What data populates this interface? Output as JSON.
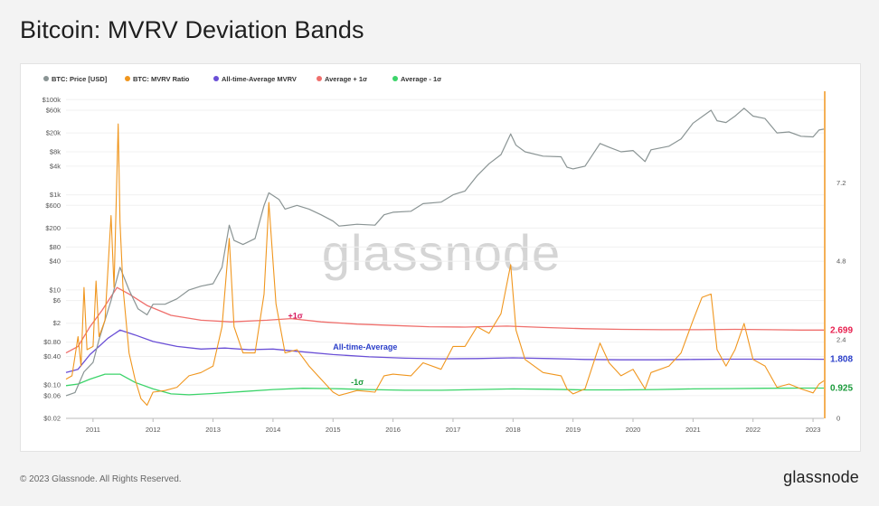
{
  "page": {
    "title": "Bitcoin: MVRV Deviation Bands",
    "footer_copyright": "© 2023 Glassnode. All Rights Reserved.",
    "footer_brand": "glassnode",
    "watermark": "glassnode"
  },
  "colors": {
    "price": "#8a9494",
    "mvrv": "#f0961e",
    "average": "#6a4fd6",
    "plus1": "#ef6f6c",
    "minus1": "#3cd46a",
    "ann_plus1": "#d81b60",
    "ann_avg": "#2b3fc9",
    "ann_minus1": "#1a9a3a"
  },
  "chart_data": {
    "type": "line",
    "title": "Bitcoin: MVRV Deviation Bands",
    "legend_position": "top-left",
    "legend": [
      {
        "label": "BTC: Price [USD]",
        "color": "#8a9494"
      },
      {
        "label": "BTC: MVRV Ratio",
        "color": "#f0961e"
      },
      {
        "label": "All-time-Average MVRV",
        "color": "#6a4fd6"
      },
      {
        "label": "Average + 1σ",
        "color": "#ef6f6c"
      },
      {
        "label": "Average - 1σ",
        "color": "#3cd46a"
      }
    ],
    "x_ticks": [
      "2011",
      "2012",
      "2013",
      "2014",
      "2015",
      "2016",
      "2017",
      "2018",
      "2019",
      "2020",
      "2021",
      "2022",
      "2023"
    ],
    "x_range": [
      2010.55,
      2023.18
    ],
    "left_axis": {
      "scale": "log",
      "range": [
        0.02,
        150000
      ],
      "ticks": [
        {
          "v": 100000,
          "label": "$100k"
        },
        {
          "v": 60000,
          "label": "$60k"
        },
        {
          "v": 20000,
          "label": "$20k"
        },
        {
          "v": 8000,
          "label": "$8k"
        },
        {
          "v": 4000,
          "label": "$4k"
        },
        {
          "v": 1000,
          "label": "$1k"
        },
        {
          "v": 600,
          "label": "$600"
        },
        {
          "v": 200,
          "label": "$200"
        },
        {
          "v": 80,
          "label": "$80"
        },
        {
          "v": 40,
          "label": "$40"
        },
        {
          "v": 10,
          "label": "$10"
        },
        {
          "v": 6,
          "label": "$6"
        },
        {
          "v": 2,
          "label": "$2"
        },
        {
          "v": 0.8,
          "label": "$0.80"
        },
        {
          "v": 0.4,
          "label": "$0.40"
        },
        {
          "v": 0.1,
          "label": "$0.10"
        },
        {
          "v": 0.06,
          "label": "$0.06"
        },
        {
          "v": 0.02,
          "label": "$0.02"
        }
      ]
    },
    "right_axis": {
      "scale": "linear",
      "range": [
        0,
        10
      ],
      "ticks": [
        {
          "v": 0,
          "label": "0"
        },
        {
          "v": 2.4,
          "label": "2.4"
        },
        {
          "v": 4.8,
          "label": "4.8"
        },
        {
          "v": 7.2,
          "label": "7.2"
        }
      ],
      "end_labels": [
        {
          "v": 2.699,
          "label": "2.699",
          "color": "#e8204f"
        },
        {
          "v": 1.808,
          "label": "1.808",
          "color": "#2b3fc9"
        },
        {
          "v": 0.925,
          "label": "0.925",
          "color": "#1a9a3a"
        }
      ]
    },
    "annotations": [
      {
        "text": "+1σ",
        "x": 2014.25,
        "v": 3.05,
        "color": "#d81b60"
      },
      {
        "text": "All-time-Average",
        "x": 2015.0,
        "v": 2.1,
        "color": "#2b3fc9"
      },
      {
        "text": "-1σ",
        "x": 2015.3,
        "v": 1.02,
        "color": "#1a9a3a"
      }
    ],
    "series": [
      {
        "name": "BTC: Price [USD]",
        "axis": "left",
        "points": [
          [
            2010.55,
            0.06
          ],
          [
            2010.7,
            0.07
          ],
          [
            2010.85,
            0.19
          ],
          [
            2011.0,
            0.3
          ],
          [
            2011.1,
            0.9
          ],
          [
            2011.3,
            6
          ],
          [
            2011.45,
            30
          ],
          [
            2011.6,
            10
          ],
          [
            2011.75,
            4
          ],
          [
            2011.9,
            3
          ],
          [
            2012.0,
            5
          ],
          [
            2012.2,
            5
          ],
          [
            2012.4,
            6.5
          ],
          [
            2012.6,
            10
          ],
          [
            2012.8,
            12
          ],
          [
            2013.0,
            13.5
          ],
          [
            2013.15,
            30
          ],
          [
            2013.27,
            230
          ],
          [
            2013.35,
            110
          ],
          [
            2013.5,
            90
          ],
          [
            2013.7,
            120
          ],
          [
            2013.85,
            600
          ],
          [
            2013.93,
            1100
          ],
          [
            2014.1,
            800
          ],
          [
            2014.2,
            500
          ],
          [
            2014.4,
            600
          ],
          [
            2014.6,
            500
          ],
          [
            2014.8,
            380
          ],
          [
            2015.0,
            280
          ],
          [
            2015.1,
            220
          ],
          [
            2015.4,
            240
          ],
          [
            2015.7,
            230
          ],
          [
            2015.85,
            380
          ],
          [
            2016.0,
            430
          ],
          [
            2016.3,
            450
          ],
          [
            2016.5,
            650
          ],
          [
            2016.8,
            700
          ],
          [
            2017.0,
            1000
          ],
          [
            2017.2,
            1200
          ],
          [
            2017.4,
            2500
          ],
          [
            2017.6,
            4500
          ],
          [
            2017.8,
            7000
          ],
          [
            2017.96,
            19000
          ],
          [
            2018.05,
            11000
          ],
          [
            2018.2,
            8000
          ],
          [
            2018.5,
            6500
          ],
          [
            2018.8,
            6300
          ],
          [
            2018.9,
            3800
          ],
          [
            2019.0,
            3500
          ],
          [
            2019.2,
            4000
          ],
          [
            2019.45,
            12000
          ],
          [
            2019.6,
            10000
          ],
          [
            2019.8,
            8000
          ],
          [
            2020.0,
            8500
          ],
          [
            2020.2,
            5000
          ],
          [
            2020.3,
            8800
          ],
          [
            2020.6,
            10500
          ],
          [
            2020.8,
            15000
          ],
          [
            2021.0,
            32000
          ],
          [
            2021.3,
            60000
          ],
          [
            2021.4,
            36000
          ],
          [
            2021.55,
            33000
          ],
          [
            2021.7,
            45000
          ],
          [
            2021.85,
            66000
          ],
          [
            2022.0,
            45000
          ],
          [
            2022.2,
            40000
          ],
          [
            2022.4,
            20000
          ],
          [
            2022.6,
            21000
          ],
          [
            2022.8,
            17000
          ],
          [
            2023.0,
            16500
          ],
          [
            2023.1,
            23000
          ],
          [
            2023.18,
            24000
          ]
        ]
      },
      {
        "name": "BTC: MVRV Ratio",
        "axis": "right",
        "points": [
          [
            2010.55,
            1.2
          ],
          [
            2010.65,
            1.3
          ],
          [
            2010.75,
            2.5
          ],
          [
            2010.8,
            1.6
          ],
          [
            2010.85,
            4.0
          ],
          [
            2010.9,
            2.1
          ],
          [
            2011.0,
            2.2
          ],
          [
            2011.05,
            4.2
          ],
          [
            2011.1,
            2.5
          ],
          [
            2011.2,
            3.0
          ],
          [
            2011.3,
            6.2
          ],
          [
            2011.35,
            4.0
          ],
          [
            2011.42,
            9.0
          ],
          [
            2011.45,
            6.0
          ],
          [
            2011.5,
            4.0
          ],
          [
            2011.6,
            2.0
          ],
          [
            2011.7,
            1.2
          ],
          [
            2011.8,
            0.6
          ],
          [
            2011.9,
            0.4
          ],
          [
            2012.0,
            0.8
          ],
          [
            2012.2,
            0.85
          ],
          [
            2012.4,
            0.95
          ],
          [
            2012.6,
            1.3
          ],
          [
            2012.8,
            1.4
          ],
          [
            2013.0,
            1.6
          ],
          [
            2013.15,
            2.8
          ],
          [
            2013.27,
            5.5
          ],
          [
            2013.35,
            2.8
          ],
          [
            2013.5,
            2.0
          ],
          [
            2013.7,
            2.0
          ],
          [
            2013.85,
            3.8
          ],
          [
            2013.93,
            6.6
          ],
          [
            2014.05,
            3.5
          ],
          [
            2014.2,
            2.0
          ],
          [
            2014.4,
            2.1
          ],
          [
            2014.6,
            1.6
          ],
          [
            2014.8,
            1.2
          ],
          [
            2015.0,
            0.8
          ],
          [
            2015.1,
            0.7
          ],
          [
            2015.4,
            0.85
          ],
          [
            2015.7,
            0.8
          ],
          [
            2015.85,
            1.3
          ],
          [
            2016.0,
            1.35
          ],
          [
            2016.3,
            1.3
          ],
          [
            2016.5,
            1.7
          ],
          [
            2016.8,
            1.5
          ],
          [
            2017.0,
            2.2
          ],
          [
            2017.2,
            2.2
          ],
          [
            2017.4,
            2.8
          ],
          [
            2017.6,
            2.6
          ],
          [
            2017.8,
            3.2
          ],
          [
            2017.96,
            4.7
          ],
          [
            2018.05,
            2.7
          ],
          [
            2018.2,
            1.8
          ],
          [
            2018.5,
            1.4
          ],
          [
            2018.8,
            1.3
          ],
          [
            2018.9,
            0.9
          ],
          [
            2019.0,
            0.75
          ],
          [
            2019.2,
            0.9
          ],
          [
            2019.45,
            2.3
          ],
          [
            2019.6,
            1.7
          ],
          [
            2019.8,
            1.3
          ],
          [
            2020.0,
            1.5
          ],
          [
            2020.2,
            0.9
          ],
          [
            2020.3,
            1.4
          ],
          [
            2020.6,
            1.6
          ],
          [
            2020.8,
            2.0
          ],
          [
            2021.0,
            3.0
          ],
          [
            2021.15,
            3.7
          ],
          [
            2021.3,
            3.8
          ],
          [
            2021.4,
            2.1
          ],
          [
            2021.55,
            1.6
          ],
          [
            2021.7,
            2.1
          ],
          [
            2021.85,
            2.9
          ],
          [
            2022.0,
            1.8
          ],
          [
            2022.2,
            1.6
          ],
          [
            2022.4,
            0.95
          ],
          [
            2022.6,
            1.05
          ],
          [
            2022.8,
            0.9
          ],
          [
            2023.0,
            0.78
          ],
          [
            2023.1,
            1.05
          ],
          [
            2023.18,
            1.15
          ]
        ]
      },
      {
        "name": "All-time-Average MVRV",
        "axis": "right",
        "points": [
          [
            2010.55,
            1.4
          ],
          [
            2010.75,
            1.5
          ],
          [
            2010.95,
            1.95
          ],
          [
            2011.1,
            2.2
          ],
          [
            2011.25,
            2.45
          ],
          [
            2011.45,
            2.7
          ],
          [
            2011.7,
            2.55
          ],
          [
            2012.0,
            2.35
          ],
          [
            2012.4,
            2.2
          ],
          [
            2012.8,
            2.12
          ],
          [
            2013.2,
            2.15
          ],
          [
            2013.6,
            2.1
          ],
          [
            2014.0,
            2.12
          ],
          [
            2014.4,
            2.05
          ],
          [
            2015.0,
            1.95
          ],
          [
            2015.6,
            1.88
          ],
          [
            2016.2,
            1.84
          ],
          [
            2016.8,
            1.82
          ],
          [
            2017.4,
            1.83
          ],
          [
            2018.0,
            1.85
          ],
          [
            2018.6,
            1.83
          ],
          [
            2019.2,
            1.8
          ],
          [
            2019.8,
            1.79
          ],
          [
            2020.4,
            1.79
          ],
          [
            2021.0,
            1.8
          ],
          [
            2021.6,
            1.81
          ],
          [
            2022.2,
            1.81
          ],
          [
            2022.8,
            1.81
          ],
          [
            2023.18,
            1.808
          ]
        ]
      },
      {
        "name": "Average + 1σ",
        "axis": "right",
        "points": [
          [
            2010.55,
            2.0
          ],
          [
            2010.75,
            2.2
          ],
          [
            2010.95,
            2.8
          ],
          [
            2011.15,
            3.3
          ],
          [
            2011.4,
            4.0
          ],
          [
            2011.6,
            3.8
          ],
          [
            2011.9,
            3.45
          ],
          [
            2012.3,
            3.15
          ],
          [
            2012.8,
            3.0
          ],
          [
            2013.3,
            2.95
          ],
          [
            2013.9,
            3.0
          ],
          [
            2014.3,
            3.05
          ],
          [
            2014.8,
            2.95
          ],
          [
            2015.4,
            2.88
          ],
          [
            2016.0,
            2.84
          ],
          [
            2016.6,
            2.8
          ],
          [
            2017.2,
            2.79
          ],
          [
            2017.9,
            2.82
          ],
          [
            2018.5,
            2.78
          ],
          [
            2019.2,
            2.74
          ],
          [
            2019.8,
            2.72
          ],
          [
            2020.5,
            2.71
          ],
          [
            2021.1,
            2.71
          ],
          [
            2021.7,
            2.72
          ],
          [
            2022.3,
            2.71
          ],
          [
            2022.8,
            2.7
          ],
          [
            2023.18,
            2.699
          ]
        ]
      },
      {
        "name": "Average - 1σ",
        "axis": "right",
        "points": [
          [
            2010.55,
            1.0
          ],
          [
            2010.75,
            1.05
          ],
          [
            2010.95,
            1.2
          ],
          [
            2011.2,
            1.35
          ],
          [
            2011.45,
            1.35
          ],
          [
            2011.7,
            1.1
          ],
          [
            2012.0,
            0.9
          ],
          [
            2012.3,
            0.75
          ],
          [
            2012.6,
            0.72
          ],
          [
            2013.0,
            0.76
          ],
          [
            2013.5,
            0.82
          ],
          [
            2014.0,
            0.88
          ],
          [
            2014.5,
            0.92
          ],
          [
            2015.0,
            0.91
          ],
          [
            2015.6,
            0.88
          ],
          [
            2016.2,
            0.86
          ],
          [
            2016.8,
            0.86
          ],
          [
            2017.4,
            0.88
          ],
          [
            2018.0,
            0.9
          ],
          [
            2018.6,
            0.89
          ],
          [
            2019.2,
            0.87
          ],
          [
            2019.8,
            0.87
          ],
          [
            2020.4,
            0.88
          ],
          [
            2021.0,
            0.9
          ],
          [
            2021.6,
            0.91
          ],
          [
            2022.2,
            0.92
          ],
          [
            2022.8,
            0.925
          ],
          [
            2023.18,
            0.925
          ]
        ]
      }
    ]
  }
}
